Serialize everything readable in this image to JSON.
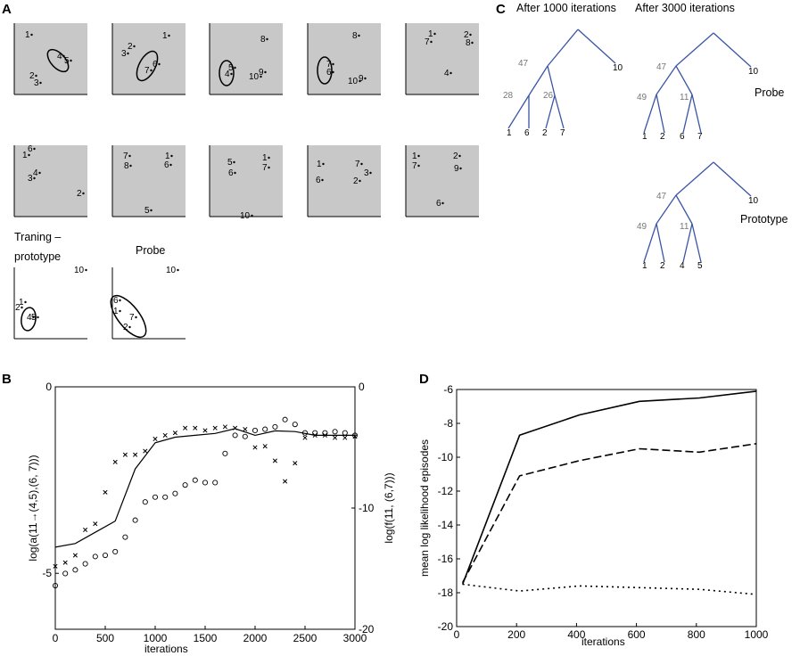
{
  "panel_labels": {
    "a": "A",
    "b": "B",
    "c": "C",
    "d": "D"
  },
  "panel_a": {
    "boxes": [
      {
        "points": [
          {
            "label": "1"
          },
          {
            "label": "4"
          },
          {
            "label": "5"
          },
          {
            "label": "2"
          },
          {
            "label": "3"
          }
        ]
      },
      {
        "points": [
          {
            "label": "3"
          },
          {
            "label": "2"
          },
          {
            "label": "1"
          },
          {
            "label": "6"
          },
          {
            "label": "7"
          }
        ]
      },
      {
        "points": [
          {
            "label": "8"
          },
          {
            "label": "5"
          },
          {
            "label": "4"
          },
          {
            "label": "9"
          },
          {
            "label": "10"
          }
        ]
      },
      {
        "points": [
          {
            "label": "8"
          },
          {
            "label": "7"
          },
          {
            "label": "6"
          },
          {
            "label": "10"
          },
          {
            "label": "9"
          }
        ]
      },
      {
        "points": [
          {
            "label": "1"
          },
          {
            "label": "7"
          },
          {
            "label": "2"
          },
          {
            "label": "8"
          },
          {
            "label": "4"
          }
        ]
      },
      {
        "points": [
          {
            "label": "6"
          },
          {
            "label": "1"
          },
          {
            "label": "4"
          },
          {
            "label": "3"
          },
          {
            "label": "2"
          }
        ]
      },
      {
        "points": [
          {
            "label": "7"
          },
          {
            "label": "1"
          },
          {
            "label": "8"
          },
          {
            "label": "6"
          },
          {
            "label": "5"
          }
        ]
      },
      {
        "points": [
          {
            "label": "5"
          },
          {
            "label": "1"
          },
          {
            "label": "6"
          },
          {
            "label": "7"
          },
          {
            "label": "10"
          }
        ]
      },
      {
        "points": [
          {
            "label": "1"
          },
          {
            "label": "7"
          },
          {
            "label": "3"
          },
          {
            "label": "6"
          },
          {
            "label": "2"
          }
        ]
      },
      {
        "points": [
          {
            "label": "1"
          },
          {
            "label": "2"
          },
          {
            "label": "7"
          },
          {
            "label": "9"
          },
          {
            "label": "6"
          }
        ]
      },
      {
        "title": "Traning – prototype",
        "points": [
          {
            "label": "10"
          },
          {
            "label": "1"
          },
          {
            "label": "2"
          },
          {
            "label": "4"
          },
          {
            "label": "5"
          }
        ]
      },
      {
        "title": "Probe",
        "points": [
          {
            "label": "10"
          },
          {
            "label": "6"
          },
          {
            "label": "1"
          },
          {
            "label": "7"
          },
          {
            "label": "2"
          }
        ]
      }
    ]
  },
  "panel_c": {
    "trees": [
      {
        "title": "After 1000 iterations",
        "caption": "",
        "leaves": [
          "1",
          "6",
          "2",
          "7",
          "10"
        ],
        "internal": [
          "47",
          "28",
          "26"
        ]
      },
      {
        "title": "After 3000 iterations",
        "caption": "Probe",
        "leaves": [
          "1",
          "2",
          "6",
          "7",
          "10"
        ],
        "internal": [
          "47",
          "49",
          "11"
        ]
      },
      {
        "title": "",
        "caption": "Prototype",
        "leaves": [
          "1",
          "2",
          "4",
          "5",
          "10"
        ],
        "internal": [
          "47",
          "49",
          "11"
        ]
      }
    ]
  },
  "chart_data": [
    {
      "panel": "B",
      "type": "line",
      "xlabel": "iterations",
      "ylabel": "log(a(11→(4,5),(6, 7)))",
      "ylabel_right": "log(f(11, (6,7)))",
      "xlim": [
        0,
        3000
      ],
      "ylim_left": [
        -6.5,
        0
      ],
      "ylim_right": [
        -20,
        0
      ],
      "xticks": [
        "0",
        "500",
        "1000",
        "1500",
        "2000",
        "2500",
        "3000"
      ],
      "yticks_left": [
        "0",
        "-5"
      ],
      "yticks_right": [
        "0",
        "-10",
        "-20"
      ],
      "series": [
        {
          "name": "line",
          "axis": "left",
          "style": "solid",
          "x": [
            0,
            200,
            400,
            600,
            800,
            1000,
            1200,
            1400,
            1600,
            1800,
            2000,
            2200,
            2400,
            2600,
            2800,
            3000
          ],
          "y": [
            -4.3,
            -4.2,
            -3.9,
            -3.6,
            -2.2,
            -1.5,
            -1.35,
            -1.3,
            -1.25,
            -1.12,
            -1.3,
            -1.18,
            -1.2,
            -1.3,
            -1.3,
            -1.3
          ]
        },
        {
          "name": "x markers",
          "axis": "right",
          "marker": "x",
          "x": [
            0,
            100,
            200,
            300,
            400,
            500,
            600,
            700,
            800,
            900,
            1000,
            1100,
            1200,
            1300,
            1400,
            1500,
            1600,
            1700,
            1800,
            1900,
            2000,
            2100,
            2200,
            2300,
            2400,
            2500,
            2600,
            2700,
            2800,
            2900,
            3000
          ],
          "y": [
            -14.8,
            -14.5,
            -13.9,
            -11.8,
            -11.3,
            -8.7,
            -6.2,
            -5.6,
            -5.6,
            -5.3,
            -4.3,
            -4.0,
            -3.8,
            -3.4,
            -3.4,
            -3.6,
            -3.4,
            -3.3,
            -3.4,
            -3.5,
            -5.0,
            -4.9,
            -6.1,
            -7.8,
            -6.3,
            -4.2,
            -4.0,
            -4.0,
            -4.2,
            -4.2,
            -4.1
          ]
        },
        {
          "name": "circle markers",
          "axis": "right",
          "marker": "o",
          "x": [
            0,
            100,
            200,
            300,
            400,
            500,
            600,
            700,
            800,
            900,
            1000,
            1100,
            1200,
            1300,
            1400,
            1500,
            1600,
            1700,
            1800,
            1900,
            2000,
            2100,
            2200,
            2300,
            2400,
            2500,
            2600,
            2700,
            2800,
            2900,
            3000
          ],
          "y": [
            -16.4,
            -15.4,
            -15.1,
            -14.6,
            -14.0,
            -13.9,
            -13.6,
            -12.4,
            -11.0,
            -9.5,
            -9.1,
            -9.1,
            -8.8,
            -8.1,
            -7.7,
            -7.9,
            -7.9,
            -5.5,
            -4.0,
            -4.1,
            -3.6,
            -3.5,
            -3.3,
            -2.7,
            -3.1,
            -3.8,
            -3.8,
            -3.8,
            -3.7,
            -3.8,
            -4.0
          ]
        }
      ]
    },
    {
      "panel": "D",
      "type": "line",
      "xlabel": "iterations",
      "ylabel": "mean log likelihood episodes",
      "xlim": [
        0,
        1000
      ],
      "ylim": [
        -20,
        -6
      ],
      "xticks": [
        "0",
        "200",
        "400",
        "600",
        "800",
        "1000"
      ],
      "yticks": [
        "-6",
        "-8",
        "-10",
        "-12",
        "-14",
        "-16",
        "-18",
        "-20"
      ],
      "series": [
        {
          "name": "solid",
          "style": "solid",
          "x": [
            20,
            210,
            410,
            610,
            810,
            1000
          ],
          "y": [
            -17.5,
            -8.7,
            -7.5,
            -6.7,
            -6.5,
            -6.1
          ]
        },
        {
          "name": "dashed",
          "style": "dashed",
          "x": [
            20,
            210,
            410,
            610,
            810,
            1000
          ],
          "y": [
            -17.4,
            -11.1,
            -10.2,
            -9.5,
            -9.7,
            -9.2
          ]
        },
        {
          "name": "dotted",
          "style": "dotted",
          "x": [
            20,
            210,
            410,
            610,
            810,
            1000
          ],
          "y": [
            -17.5,
            -17.9,
            -17.6,
            -17.7,
            -17.8,
            -18.1
          ]
        }
      ]
    }
  ]
}
